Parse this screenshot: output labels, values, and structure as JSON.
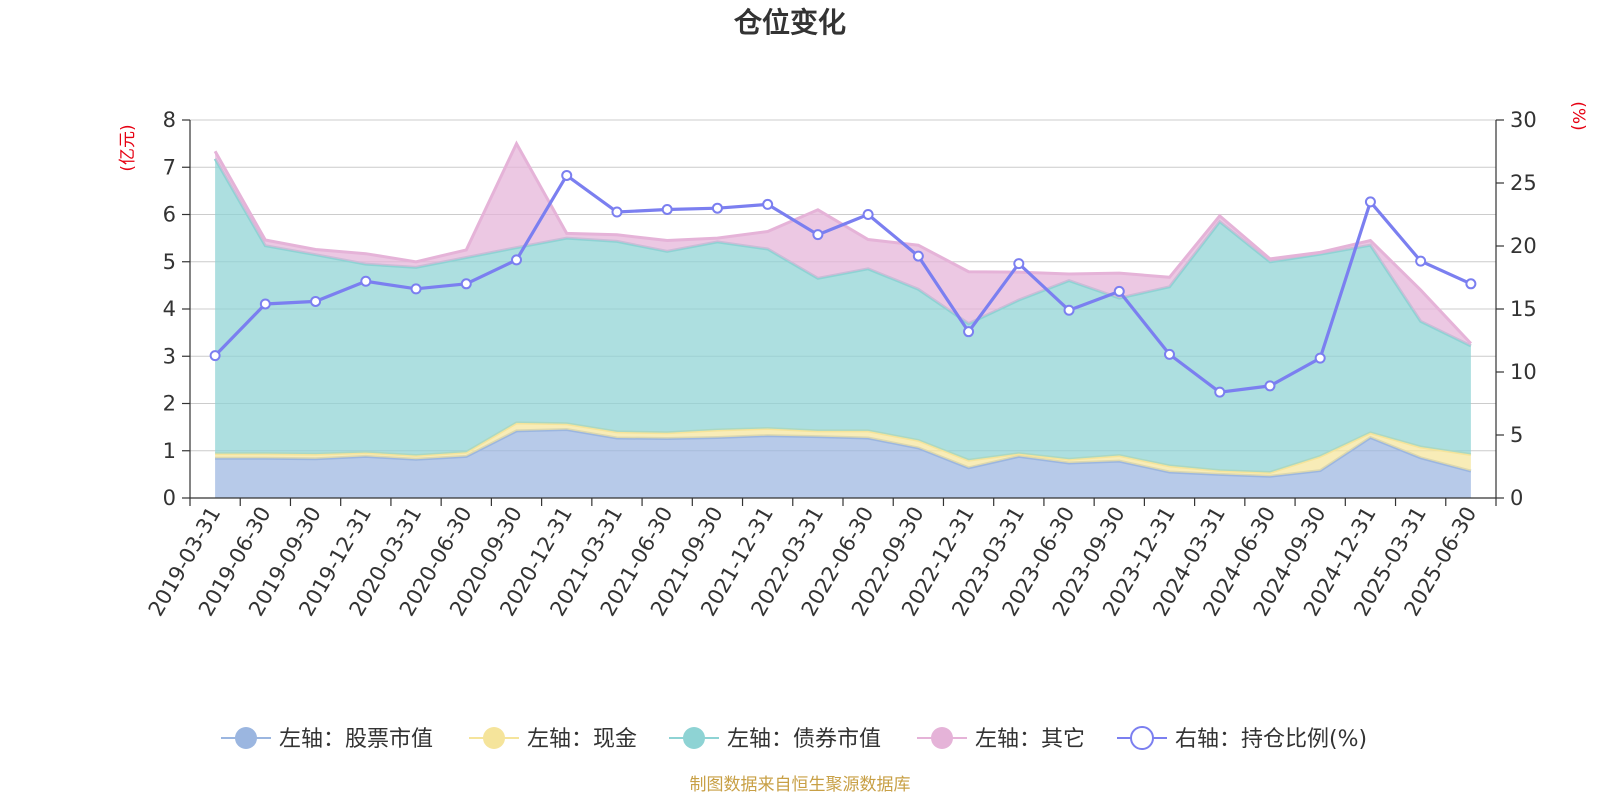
{
  "chart_data": {
    "type": "area",
    "title": "仓位变化",
    "left_axis_unit": "(亿元)",
    "right_axis_unit": "(%)",
    "left_ylim": [
      0,
      8
    ],
    "left_ticks": [
      0,
      1,
      2,
      3,
      4,
      5,
      6,
      7,
      8
    ],
    "right_ylim": [
      0,
      30
    ],
    "right_ticks": [
      0,
      5,
      10,
      15,
      20,
      25,
      30
    ],
    "grid": true,
    "legend_position": "bottom",
    "x": [
      "2019-03-31",
      "2019-06-30",
      "2019-09-30",
      "2019-12-31",
      "2020-03-31",
      "2020-06-30",
      "2020-09-30",
      "2020-12-31",
      "2021-03-31",
      "2021-06-30",
      "2021-09-30",
      "2021-12-31",
      "2022-03-31",
      "2022-06-30",
      "2022-09-30",
      "2022-12-31",
      "2023-03-31",
      "2023-06-30",
      "2023-09-30",
      "2023-12-31",
      "2024-03-31",
      "2024-06-30",
      "2024-09-30",
      "2024-12-31",
      "2025-03-31",
      "2025-06-30"
    ],
    "series": [
      {
        "name": "左轴：股票市值",
        "axis": "left",
        "type": "area",
        "color": "#9bb6e0",
        "values": [
          0.84,
          0.84,
          0.83,
          0.88,
          0.82,
          0.88,
          1.42,
          1.45,
          1.27,
          1.26,
          1.28,
          1.32,
          1.3,
          1.27,
          1.06,
          0.64,
          0.88,
          0.74,
          0.78,
          0.55,
          0.5,
          0.46,
          0.58,
          1.28,
          0.85,
          0.57
        ]
      },
      {
        "name": "左轴：现金",
        "axis": "left",
        "type": "area",
        "color": "#f5e49b",
        "values": [
          0.1,
          0.1,
          0.1,
          0.08,
          0.08,
          0.09,
          0.17,
          0.12,
          0.13,
          0.12,
          0.16,
          0.15,
          0.12,
          0.15,
          0.16,
          0.16,
          0.06,
          0.08,
          0.12,
          0.13,
          0.08,
          0.08,
          0.3,
          0.1,
          0.23,
          0.35
        ]
      },
      {
        "name": "左轴：债券市值",
        "axis": "left",
        "type": "area",
        "color": "#8ed3d4",
        "values": [
          6.24,
          4.4,
          4.22,
          3.99,
          3.98,
          4.12,
          3.71,
          3.93,
          4.03,
          3.84,
          3.98,
          3.8,
          3.23,
          3.43,
          3.2,
          2.89,
          3.25,
          3.78,
          3.33,
          3.79,
          5.27,
          4.46,
          4.28,
          3.97,
          2.66,
          2.3
        ]
      },
      {
        "name": "左轴：其它",
        "axis": "left",
        "type": "area",
        "color": "#e5b3d8",
        "values": [
          0.16,
          0.12,
          0.11,
          0.22,
          0.12,
          0.16,
          2.2,
          0.1,
          0.14,
          0.23,
          0.08,
          0.37,
          1.45,
          0.62,
          0.93,
          1.1,
          0.59,
          0.14,
          0.53,
          0.2,
          0.12,
          0.06,
          0.04,
          0.1,
          0.66,
          0.05
        ]
      },
      {
        "name": "右轴：持仓比例(%)",
        "axis": "right",
        "type": "line",
        "color": "#7b7ff0",
        "values": [
          11.3,
          15.4,
          15.6,
          17.2,
          16.6,
          17.0,
          18.9,
          25.6,
          22.7,
          22.9,
          23.0,
          23.3,
          20.9,
          22.5,
          19.2,
          13.2,
          18.6,
          14.9,
          16.4,
          11.4,
          8.4,
          8.9,
          11.1,
          23.5,
          18.8,
          17.0
        ]
      }
    ],
    "source_note": "制图数据来自恒生聚源数据库"
  }
}
